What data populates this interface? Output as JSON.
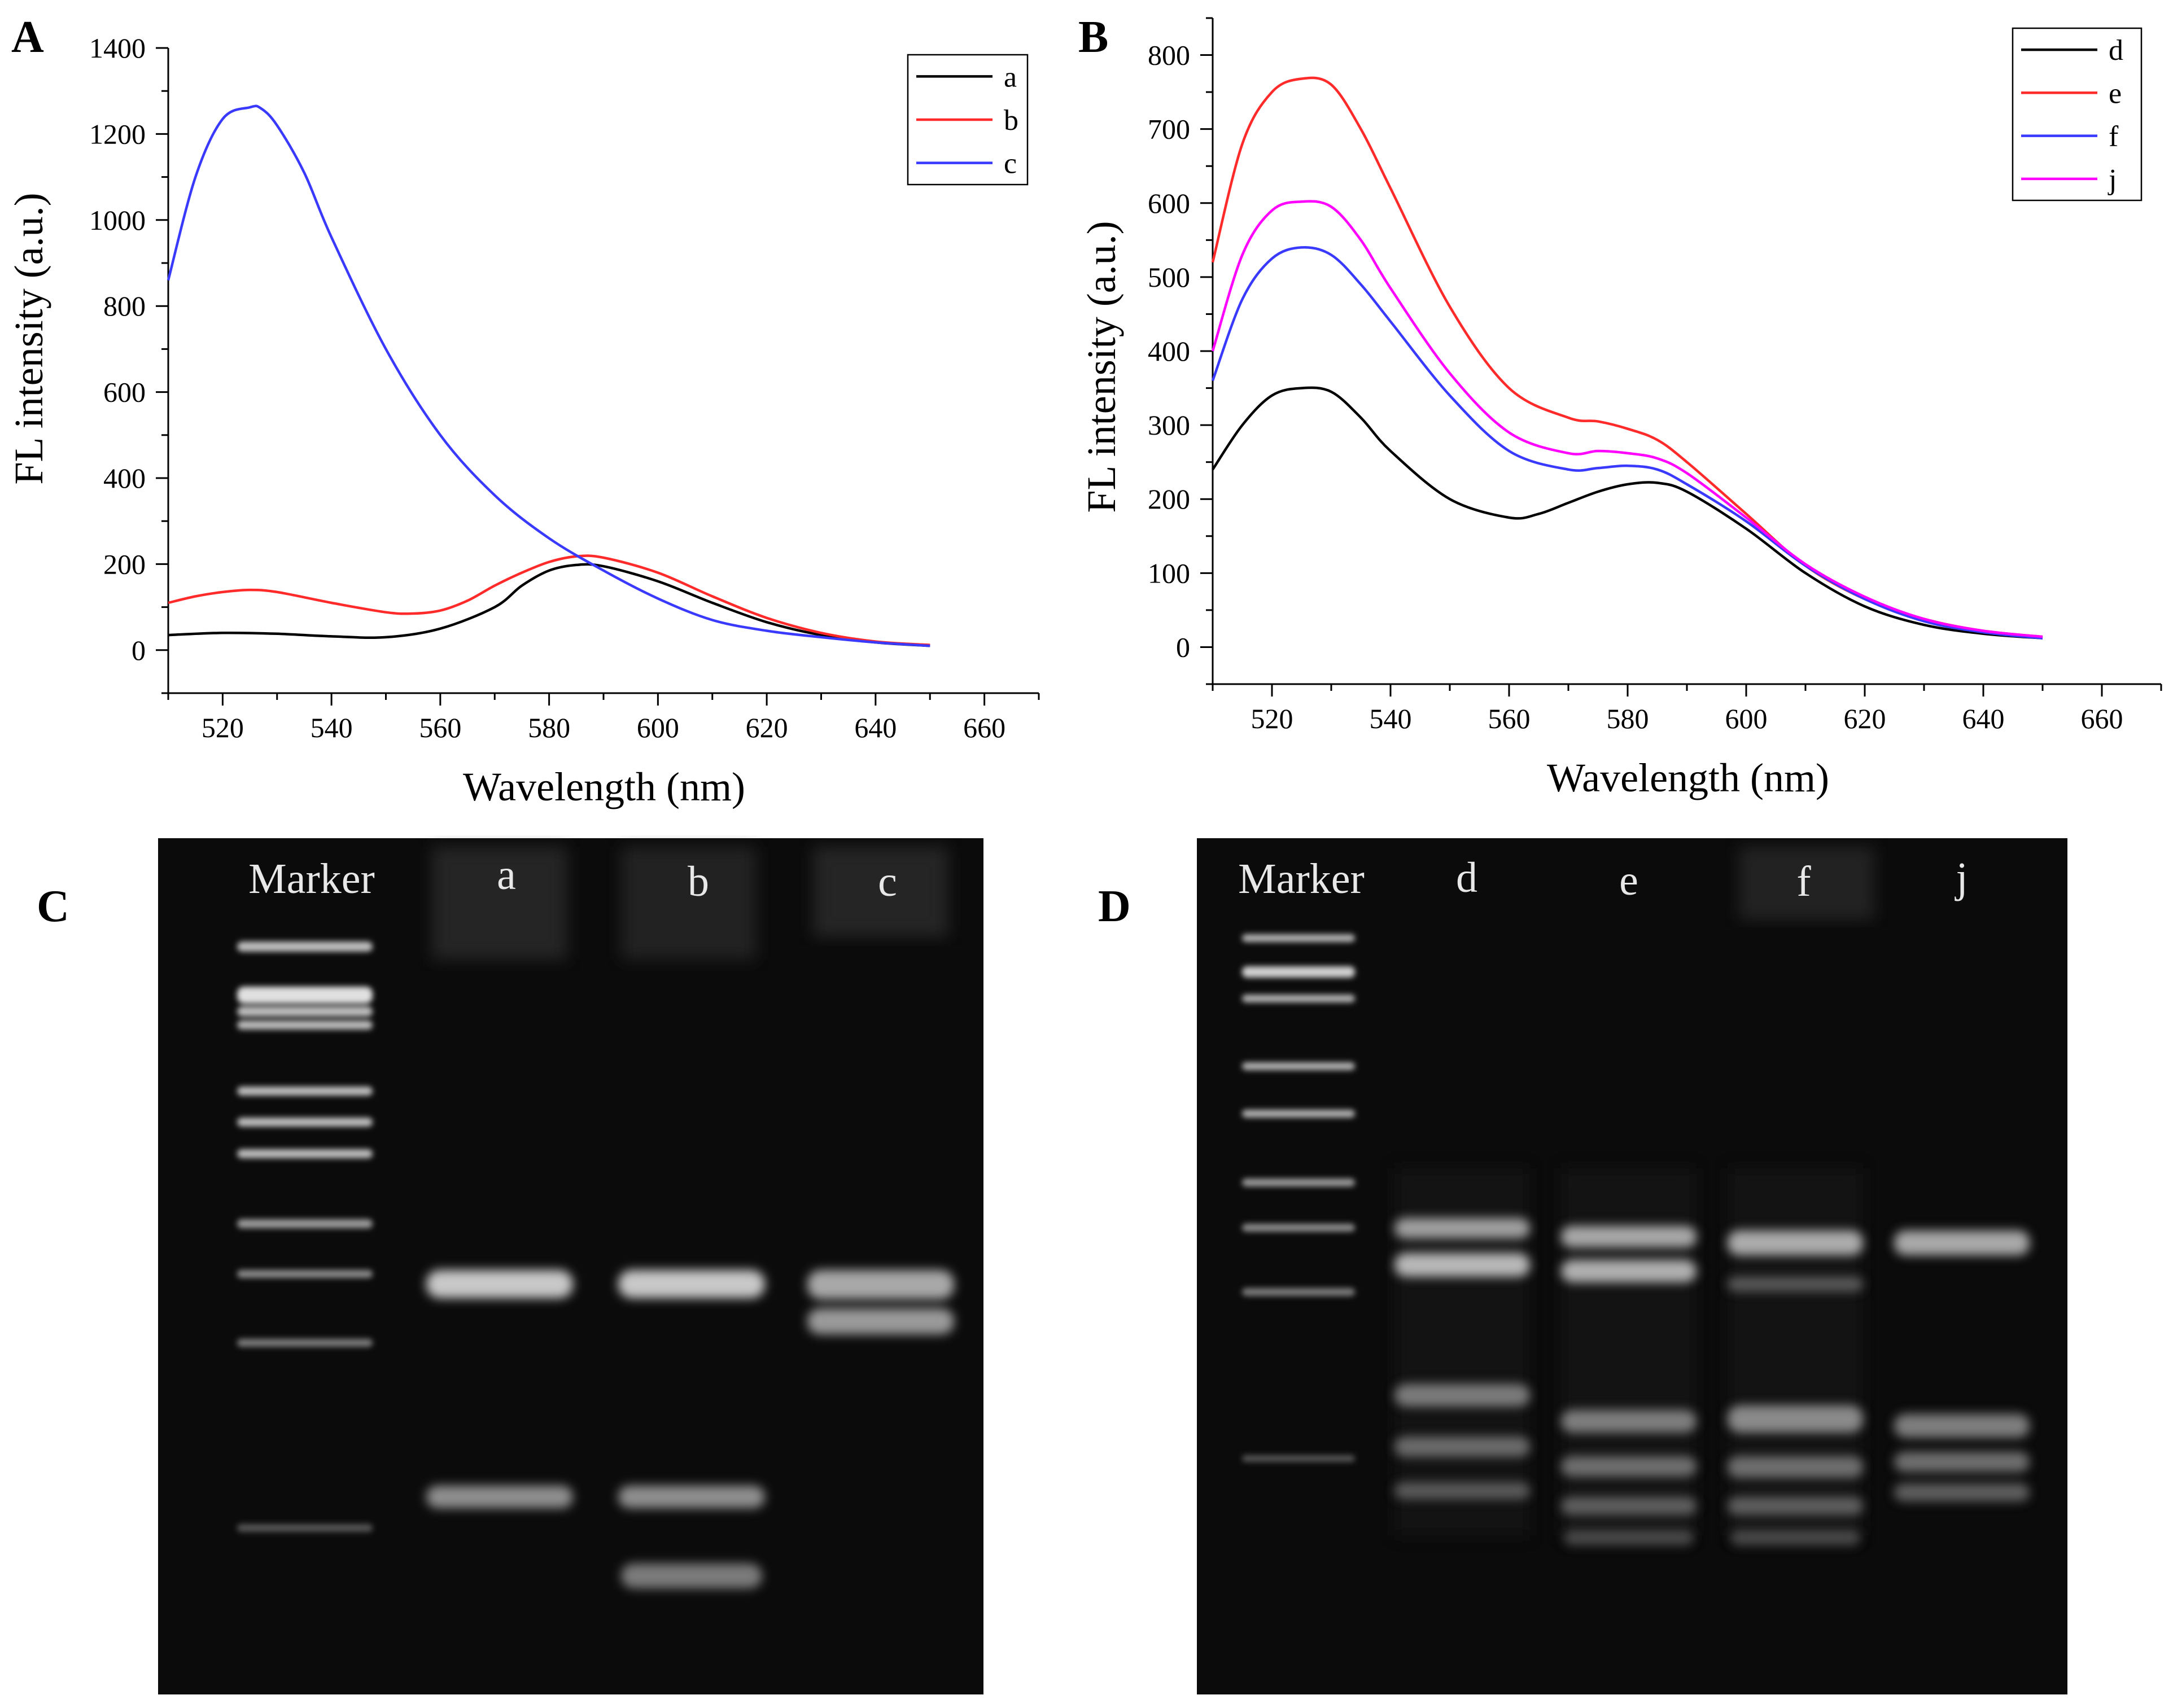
{
  "chart_data": [
    {
      "panel": "A",
      "type": "line",
      "xlabel": "Wavelength (nm)",
      "ylabel": "FL intensity (a.u.)",
      "xlim": [
        510,
        670
      ],
      "ylim": [
        -100,
        1400
      ],
      "x_ticks": [
        520,
        540,
        560,
        580,
        600,
        620,
        640,
        660
      ],
      "y_ticks": [
        0,
        200,
        400,
        600,
        800,
        1000,
        1200,
        1400
      ],
      "legend_position": "top-right",
      "series": [
        {
          "name": "a",
          "color": "#000000",
          "x": [
            510,
            520,
            530,
            540,
            550,
            560,
            570,
            575,
            580,
            585,
            590,
            600,
            610,
            620,
            630,
            640,
            650
          ],
          "y": [
            35,
            40,
            38,
            32,
            30,
            50,
            100,
            150,
            185,
            198,
            195,
            160,
            110,
            65,
            35,
            18,
            10
          ]
        },
        {
          "name": "b",
          "color": "#ff2a2a",
          "x": [
            510,
            515,
            520,
            525,
            530,
            540,
            550,
            555,
            560,
            565,
            570,
            575,
            580,
            585,
            590,
            600,
            610,
            620,
            630,
            640,
            650
          ],
          "y": [
            110,
            125,
            135,
            140,
            135,
            110,
            88,
            85,
            92,
            115,
            150,
            180,
            205,
            218,
            215,
            180,
            125,
            75,
            40,
            20,
            12
          ]
        },
        {
          "name": "c",
          "color": "#3a3aff",
          "x": [
            510,
            515,
            520,
            525,
            527,
            530,
            535,
            540,
            550,
            560,
            570,
            580,
            590,
            600,
            610,
            620,
            630,
            640,
            650
          ],
          "y": [
            860,
            1100,
            1235,
            1262,
            1260,
            1220,
            1110,
            960,
            700,
            500,
            360,
            260,
            185,
            120,
            70,
            45,
            30,
            18,
            10
          ]
        }
      ]
    },
    {
      "panel": "B",
      "type": "line",
      "xlabel": "Wavelength (nm)",
      "ylabel": "FL intensity (a.u.)",
      "xlim": [
        510,
        670
      ],
      "ylim": [
        -50,
        850
      ],
      "x_ticks": [
        520,
        540,
        560,
        580,
        600,
        620,
        640,
        660
      ],
      "y_ticks": [
        0,
        100,
        200,
        300,
        400,
        500,
        600,
        700,
        800
      ],
      "legend_position": "top-right",
      "series": [
        {
          "name": "d",
          "color": "#000000",
          "x": [
            510,
            515,
            520,
            525,
            530,
            535,
            540,
            550,
            560,
            565,
            570,
            575,
            580,
            585,
            590,
            600,
            610,
            620,
            630,
            640,
            650
          ],
          "y": [
            240,
            300,
            340,
            350,
            345,
            310,
            265,
            200,
            175,
            180,
            195,
            210,
            220,
            222,
            210,
            160,
            100,
            55,
            30,
            18,
            12
          ]
        },
        {
          "name": "e",
          "color": "#ff2a2a",
          "x": [
            510,
            515,
            520,
            525,
            530,
            535,
            540,
            550,
            560,
            570,
            575,
            580,
            585,
            590,
            600,
            610,
            620,
            630,
            640,
            650
          ],
          "y": [
            520,
            680,
            750,
            768,
            760,
            700,
            620,
            460,
            350,
            310,
            305,
            295,
            280,
            250,
            180,
            110,
            65,
            38,
            22,
            14
          ]
        },
        {
          "name": "f",
          "color": "#3a3aff",
          "x": [
            510,
            515,
            520,
            525,
            530,
            535,
            540,
            550,
            560,
            570,
            575,
            580,
            585,
            590,
            600,
            610,
            620,
            630,
            640,
            650
          ],
          "y": [
            360,
            470,
            525,
            540,
            530,
            490,
            440,
            340,
            265,
            240,
            242,
            245,
            240,
            220,
            170,
            110,
            65,
            35,
            20,
            12
          ]
        },
        {
          "name": "j",
          "color": "#ff00ff",
          "x": [
            510,
            515,
            520,
            525,
            530,
            535,
            540,
            550,
            560,
            570,
            575,
            580,
            585,
            590,
            600,
            610,
            620,
            630,
            640,
            650
          ],
          "y": [
            400,
            530,
            590,
            602,
            595,
            550,
            485,
            370,
            290,
            262,
            265,
            262,
            255,
            235,
            175,
            112,
            68,
            38,
            22,
            14
          ]
        }
      ]
    }
  ],
  "panels": {
    "A": "A",
    "B": "B",
    "C": "C",
    "D": "D"
  },
  "gel_C": {
    "lanes": [
      "Marker",
      "a",
      "b",
      "c"
    ]
  },
  "gel_D": {
    "lanes": [
      "Marker",
      "d",
      "e",
      "f",
      "j"
    ]
  }
}
